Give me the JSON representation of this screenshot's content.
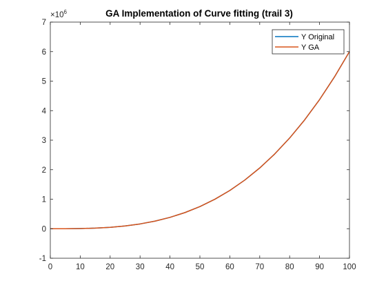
{
  "chart_data": {
    "type": "line",
    "title": "GA Implementation of Curve fitting (trail 3)",
    "xlabel": "",
    "ylabel": "",
    "xlim": [
      0,
      100
    ],
    "ylim": [
      -1000000,
      7000000
    ],
    "xticks": [
      0,
      10,
      20,
      30,
      40,
      50,
      60,
      70,
      80,
      90,
      100
    ],
    "yticks_labels": [
      "-1",
      "0",
      "1",
      "2",
      "3",
      "4",
      "5",
      "6",
      "7"
    ],
    "y_multiplier": {
      "base": "×10",
      "exponent": "6"
    },
    "grid": false,
    "legend_position": "top-right",
    "x": [
      0,
      5,
      10,
      15,
      20,
      25,
      30,
      35,
      40,
      45,
      50,
      55,
      60,
      65,
      70,
      75,
      80,
      85,
      90,
      95,
      100
    ],
    "series": [
      {
        "name": "Y Original",
        "color": "#0072BD",
        "values": [
          0,
          750,
          6000,
          20250,
          48000,
          93750,
          162000,
          257250,
          384000,
          546750,
          750000,
          998250,
          1296000,
          1647750,
          2058000,
          2531250,
          3072000,
          3684750,
          4374000,
          5144250,
          6000000
        ]
      },
      {
        "name": "Y GA",
        "color": "#D95319",
        "values": [
          0,
          750,
          6000,
          20250,
          48000,
          93750,
          162000,
          257250,
          384000,
          546750,
          750000,
          998250,
          1296000,
          1647750,
          2058000,
          2531250,
          3072000,
          3684750,
          4374000,
          5144250,
          6000000
        ]
      }
    ]
  }
}
